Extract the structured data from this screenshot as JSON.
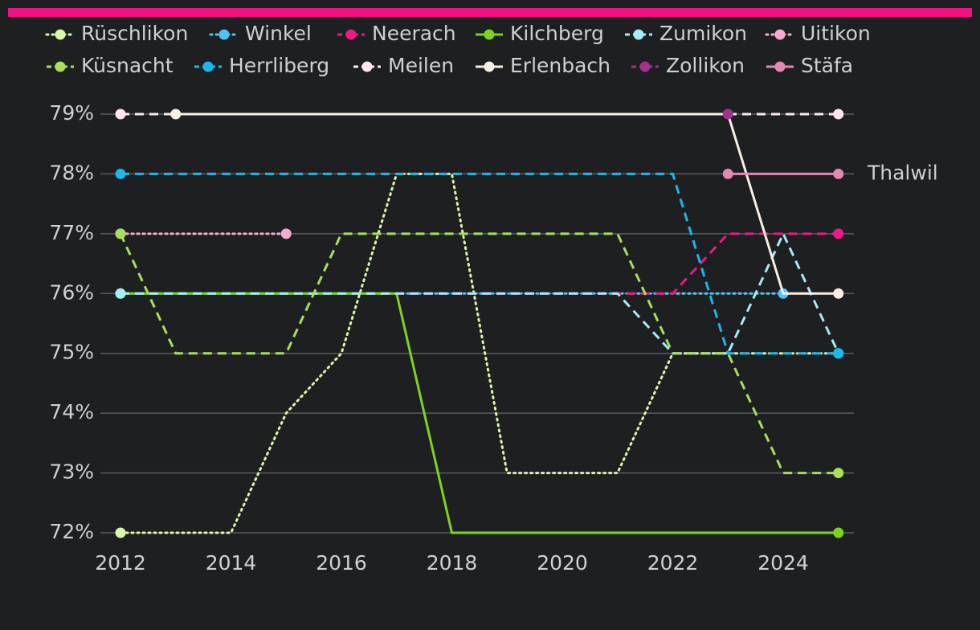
{
  "chart_data": {
    "type": "line",
    "x": [
      2012,
      2013,
      2014,
      2015,
      2016,
      2017,
      2018,
      2019,
      2020,
      2021,
      2022,
      2023,
      2024,
      2025
    ],
    "xlim": [
      2012,
      2025
    ],
    "xticks": [
      2012,
      2014,
      2016,
      2018,
      2020,
      2022,
      2024
    ],
    "ylim": [
      72,
      79
    ],
    "yticks": [
      {
        "value": 72,
        "label": "72%"
      },
      {
        "value": 73,
        "label": "73%"
      },
      {
        "value": 74,
        "label": "74%"
      },
      {
        "value": 75,
        "label": "75%"
      },
      {
        "value": 76,
        "label": "76%"
      },
      {
        "value": 77,
        "label": "77%"
      },
      {
        "value": 78,
        "label": "78%"
      },
      {
        "value": 79,
        "label": "79%"
      }
    ],
    "grid": true,
    "annotation": "Thalwil",
    "series": [
      {
        "name": "Rüschlikon",
        "color": "#d9f7a8",
        "dash": "dotted",
        "values": [
          72,
          72,
          72,
          74,
          75,
          78,
          78,
          73,
          73,
          73,
          75,
          75,
          75,
          75
        ]
      },
      {
        "name": "Winkel",
        "color": "#4fc3f7",
        "dash": "dotted",
        "values": [
          76,
          76,
          76,
          76,
          76,
          76,
          76,
          76,
          76,
          76,
          76,
          76,
          76,
          null
        ]
      },
      {
        "name": "Neerach",
        "color": "#ec1a84",
        "dash": "dashed",
        "values": [
          76,
          76,
          76,
          76,
          76,
          76,
          76,
          76,
          76,
          76,
          76,
          77,
          77,
          77
        ]
      },
      {
        "name": "Kilchberg",
        "color": "#7ed321",
        "dash": "solid",
        "values": [
          76,
          76,
          76,
          76,
          76,
          76,
          72,
          72,
          72,
          72,
          72,
          72,
          72,
          72
        ]
      },
      {
        "name": "Zumikon",
        "color": "#a5ecf8",
        "dash": "dashed",
        "values": [
          76,
          76,
          76,
          76,
          76,
          76,
          76,
          76,
          76,
          76,
          75,
          75,
          77,
          75
        ]
      },
      {
        "name": "Uitikon",
        "color": "#f9a8d4",
        "dash": "dotted",
        "values": [
          77,
          77,
          77,
          77,
          null,
          null,
          null,
          null,
          null,
          null,
          null,
          null,
          null,
          null
        ]
      },
      {
        "name": "Küsnacht",
        "color": "#a8e05a",
        "dash": "dashed",
        "values": [
          77,
          75,
          75,
          75,
          77,
          77,
          77,
          77,
          77,
          77,
          75,
          75,
          73,
          73
        ]
      },
      {
        "name": "Herrliberg",
        "color": "#1ab8ec",
        "dash": "dashed",
        "values": [
          78,
          78,
          78,
          78,
          78,
          78,
          78,
          78,
          78,
          78,
          78,
          75,
          75,
          75
        ]
      },
      {
        "name": "Meilen",
        "color": "#fde6f0",
        "dash": "dashed",
        "values": [
          79,
          79,
          79,
          79,
          79,
          79,
          79,
          79,
          79,
          79,
          79,
          79,
          79,
          79
        ]
      },
      {
        "name": "Erlenbach",
        "color": "#f7efe2",
        "dash": "solid",
        "values": [
          null,
          79,
          79,
          79,
          79,
          79,
          79,
          79,
          79,
          79,
          79,
          79,
          76,
          76
        ]
      },
      {
        "name": "Zollikon",
        "color": "#a6308e",
        "dash": "dashed",
        "values": [
          null,
          null,
          null,
          null,
          null,
          null,
          null,
          null,
          null,
          null,
          null,
          79,
          null,
          null
        ]
      },
      {
        "name": "Stäfa",
        "color": "#e587b5",
        "dash": "solid",
        "values": [
          null,
          null,
          null,
          null,
          null,
          null,
          null,
          null,
          null,
          null,
          null,
          78,
          78,
          78
        ]
      }
    ]
  }
}
